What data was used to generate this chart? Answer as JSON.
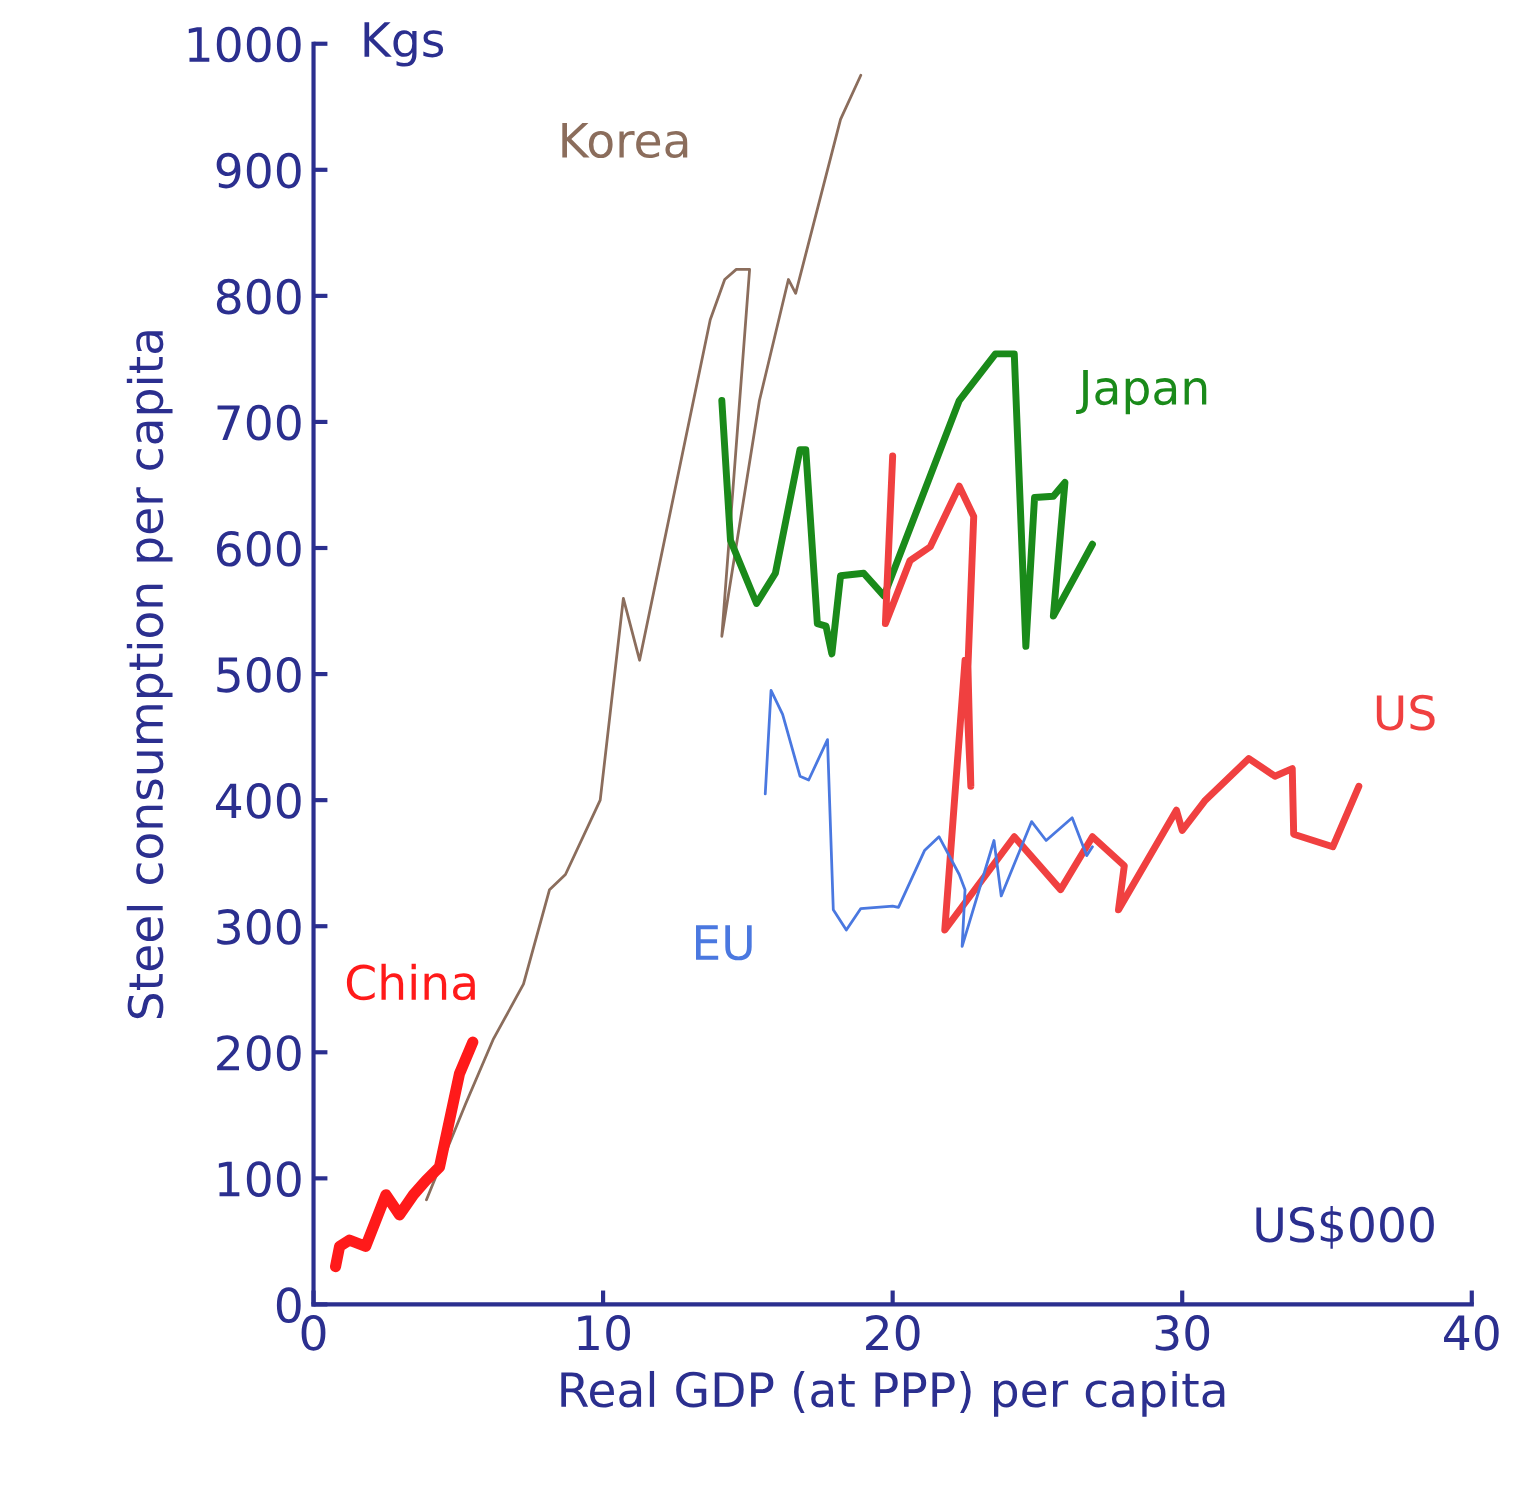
{
  "chart_data": {
    "type": "line",
    "xlabel": "Real GDP (at PPP) per capita",
    "ylabel": "Steel consumption per capita",
    "annotations": [
      "Kgs",
      "US$000"
    ],
    "xlim": [
      0,
      40
    ],
    "xticks": [
      0,
      10,
      20,
      30,
      40
    ],
    "ylim": [
      0,
      1000
    ],
    "yticks": [
      0,
      100,
      200,
      300,
      400,
      500,
      600,
      700,
      800,
      900,
      1000
    ],
    "grid": false,
    "legend": false,
    "marker": "none",
    "line_style": "solid",
    "series": [
      {
        "name": "Korea",
        "color": "#8b6d5c",
        "x": [
          3.9,
          5.25,
          6.2,
          7.25,
          8.15,
          8.7,
          9.9,
          10.7,
          11.26,
          13.7,
          14.2,
          14.6,
          15.06,
          14.1,
          15.4,
          16.4,
          16.65,
          18.2,
          18.9
        ],
        "values": [
          83,
          159,
          210,
          254,
          329,
          341,
          400,
          560,
          511,
          781,
          813,
          821,
          821,
          530,
          717,
          813,
          802,
          940,
          975
        ]
      },
      {
        "name": "Japan",
        "color": "#1a8a1a",
        "x": [
          14.1,
          14.4,
          15.3,
          15.95,
          16.8,
          17.0,
          17.4,
          17.7,
          17.9,
          18.2,
          19.0,
          19.7,
          22.3,
          23.55,
          24.2,
          24.6,
          24.9,
          25.55,
          25.95,
          25.55,
          26.9
        ],
        "values": [
          717,
          606,
          556,
          580,
          678,
          678,
          540,
          538,
          516,
          578,
          580,
          562,
          717,
          754,
          754,
          522,
          640,
          641,
          652,
          546,
          603
        ]
      },
      {
        "name": "US",
        "color": "#f04040",
        "x": [
          20.0,
          19.75,
          20.6,
          21.3,
          22.3,
          22.8,
          22.6,
          22.7,
          22.5,
          21.8,
          24.2,
          25.8,
          26.9,
          28.0,
          27.8,
          29.8,
          30.0,
          30.8,
          32.3,
          33.2,
          33.8,
          33.85,
          35.2,
          36.1
        ],
        "values": [
          673,
          540,
          590,
          601,
          649,
          625,
          506,
          411,
          511,
          297,
          371,
          329,
          371,
          348,
          313,
          392,
          376,
          400,
          433,
          419,
          425,
          373,
          363,
          411
        ]
      },
      {
        "name": "EU",
        "color": "#4a78e0",
        "x": [
          15.6,
          15.8,
          16.2,
          16.8,
          17.1,
          17.75,
          17.95,
          18.4,
          18.9,
          20.0,
          20.2,
          21.1,
          21.6,
          22.3,
          22.5,
          22.4,
          23.5,
          23.75,
          24.8,
          25.3,
          26.2,
          26.7,
          26.9
        ],
        "values": [
          405,
          487,
          468,
          419,
          416,
          448,
          313,
          297,
          314,
          316,
          315,
          360,
          371,
          341,
          329,
          284,
          368,
          324,
          383,
          368,
          386,
          356,
          363
        ]
      },
      {
        "name": "China",
        "color": "#ff1a1a",
        "x": [
          0.76,
          0.9,
          1.24,
          1.8,
          2.5,
          2.97,
          3.45,
          3.87,
          4.35,
          5.04,
          5.5
        ],
        "values": [
          30,
          46,
          51,
          46,
          87,
          71,
          87,
          98,
          109,
          183,
          208
        ]
      }
    ]
  }
}
